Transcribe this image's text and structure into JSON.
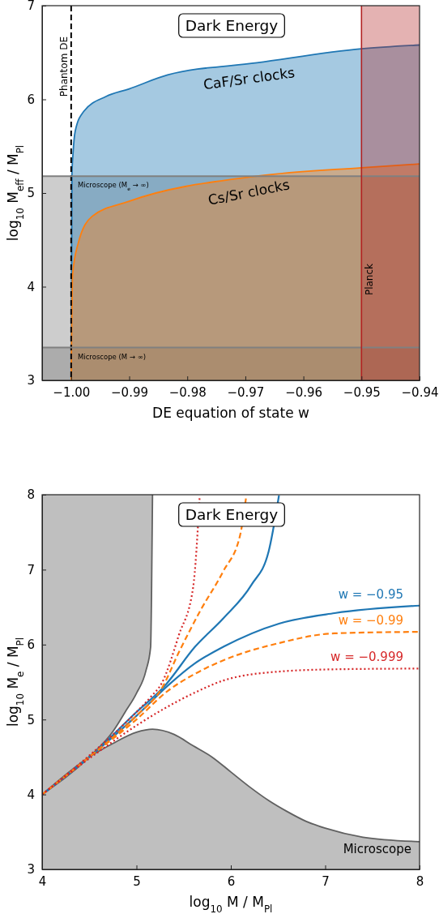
{
  "chart_data": [
    {
      "type": "area",
      "title": "Dark Energy",
      "xlabel": "DE equation of state w",
      "ylabel": "log$_{10}$ M$_{eff}$ / M$_{Pl}$",
      "xlim": [
        -1.005,
        -0.94
      ],
      "ylim": [
        3,
        7
      ],
      "xticks": [
        {
          "value": -1,
          "label": "−1.00"
        },
        {
          "value": -0.99,
          "label": "−0.99"
        },
        {
          "value": -0.98,
          "label": "−0.98"
        },
        {
          "value": -0.97,
          "label": "−0.97"
        },
        {
          "value": -0.96,
          "label": "−0.96"
        },
        {
          "value": -0.95,
          "label": "−0.95"
        },
        {
          "value": -0.94,
          "label": "−0.94"
        }
      ],
      "yticks": [
        3,
        4,
        5,
        6,
        7
      ],
      "series": [
        {
          "name": "CaF/Sr clocks",
          "color": "#1f77b4",
          "x": [
            -1,
            -0.99986,
            -0.99968,
            -0.9993,
            -0.99785,
            -0.994,
            -0.9901,
            -0.9834,
            -0.968,
            -0.95,
            -0.94
          ],
          "values": [
            3,
            5.21,
            5.42,
            5.66,
            5.87,
            6.03,
            6.11,
            6.26,
            6.39,
            6.54,
            6.58
          ]
        },
        {
          "name": "Cs/Sr clocks",
          "color": "#ff7f0e",
          "x": [
            -1,
            -0.99975,
            -0.9988,
            -0.9964,
            -0.9901,
            -0.968,
            -0.95,
            -0.94
          ],
          "values": [
            3,
            4.13,
            4.46,
            4.75,
            4.91,
            5.18,
            5.27,
            5.31
          ]
        }
      ],
      "ref_lines": [
        {
          "axis": "x",
          "value": -1,
          "label": "Phantom DE",
          "color": "#000000",
          "line_style": "dashed"
        },
        {
          "axis": "y",
          "value": 5.18,
          "color": "#808080",
          "line_style": "solid"
        },
        {
          "axis": "y",
          "value": 3.35,
          "color": "#808080",
          "line_style": "solid"
        },
        {
          "axis": "x",
          "value": -0.95,
          "color": "#b22222",
          "line_style": "solid"
        }
      ],
      "bands": [
        {
          "axis": "y",
          "from": 3,
          "to": 5.18,
          "label": "Microscope (M$_{e}$ → ∞)",
          "color": "#707070"
        },
        {
          "axis": "y",
          "from": 3,
          "to": 3.35,
          "label": "Microscope (M → ∞)",
          "color": "#707070"
        },
        {
          "axis": "x",
          "from": -0.95,
          "to": -0.94,
          "label": "Planck",
          "color": "#b22222"
        }
      ]
    },
    {
      "type": "line",
      "title": "Dark Energy",
      "xlabel": "log$_{10}$ M / M$_{Pl}$",
      "ylabel": "log$_{10}$ M$_{e}$ / M$_{Pl}$",
      "xlim": [
        4,
        8
      ],
      "ylim": [
        3,
        8
      ],
      "xticks": [
        4,
        5,
        6,
        7,
        8
      ],
      "yticks": [
        3,
        4,
        5,
        6,
        7,
        8
      ],
      "series": [
        {
          "name": "Microscope",
          "type": "area",
          "color": "#606060",
          "x": [
            4,
            4.5,
            4.75,
            5.0,
            5.17,
            5.4,
            5.6,
            5.8,
            6.0,
            6.2,
            6.4,
            6.6,
            6.8,
            7.0,
            7.4,
            8
          ],
          "values": [
            4,
            4.5,
            4.68,
            4.83,
            4.87,
            4.8,
            4.65,
            4.5,
            4.3,
            4.1,
            3.92,
            3.77,
            3.64,
            3.55,
            3.43,
            3.37
          ]
        },
        {
          "type": "line",
          "color": "#606060",
          "x": [
            4,
            4.5,
            4.75,
            4.88,
            5.0,
            5.1,
            5.15,
            5.16,
            5.17
          ],
          "values": [
            4,
            4.5,
            4.84,
            5.1,
            5.35,
            5.65,
            5.97,
            6.72,
            8
          ],
          "lower": [
            4,
            4.5,
            4.84,
            5.1,
            5.35,
            5.65,
            5.97,
            6.72,
            8
          ],
          "upper": [
            8,
            8,
            8,
            8,
            8,
            8,
            8,
            8,
            8
          ]
        },
        {
          "name": "w = −0.95",
          "color": "#1f77b4",
          "line_style": "solid",
          "x": [
            4,
            4.5,
            5.0,
            5.33,
            5.62,
            5.92,
            6.51,
            7.1,
            8
          ],
          "values": [
            4,
            4.5,
            5.05,
            5.45,
            5.75,
            5.97,
            6.28,
            6.42,
            6.52
          ]
        },
        {
          "color": "#1f77b4",
          "line_style": "solid",
          "x": [
            4,
            4.5,
            5.0,
            5.3,
            5.62,
            5.92,
            6.22,
            6.4,
            6.51
          ],
          "values": [
            4,
            4.5,
            5.1,
            5.45,
            5.97,
            6.35,
            6.8,
            7.24,
            7.99
          ]
        },
        {
          "name": "w = −0.99",
          "color": "#ff7f0e",
          "line_style": "dashed",
          "x": [
            4,
            4.5,
            5.0,
            5.33,
            5.62,
            5.92,
            6.51,
            7.1,
            8
          ],
          "values": [
            4,
            4.5,
            5.0,
            5.38,
            5.61,
            5.79,
            6.02,
            6.15,
            6.17
          ]
        },
        {
          "color": "#ff7f0e",
          "line_style": "dashed",
          "x": [
            4,
            4.5,
            5.0,
            5.27,
            5.45,
            5.68,
            5.92,
            6.1,
            6.16
          ],
          "values": [
            4,
            4.5,
            5.05,
            5.42,
            5.9,
            6.46,
            6.98,
            7.47,
            7.95
          ]
        },
        {
          "name": "w = −0.999",
          "color": "#d62728",
          "line_style": "dotted",
          "x": [
            4,
            4.5,
            5.0,
            5.3,
            5.62,
            5.92,
            6.51,
            7.1,
            8
          ],
          "values": [
            4,
            4.48,
            4.92,
            5.15,
            5.36,
            5.52,
            5.64,
            5.67,
            5.68
          ]
        },
        {
          "color": "#d62728",
          "line_style": "dotted",
          "x": [
            4,
            4.5,
            5.0,
            5.15,
            5.27,
            5.45,
            5.6,
            5.67
          ],
          "values": [
            4,
            4.52,
            5.1,
            5.3,
            5.49,
            6.13,
            6.76,
            7.98
          ]
        }
      ]
    }
  ]
}
